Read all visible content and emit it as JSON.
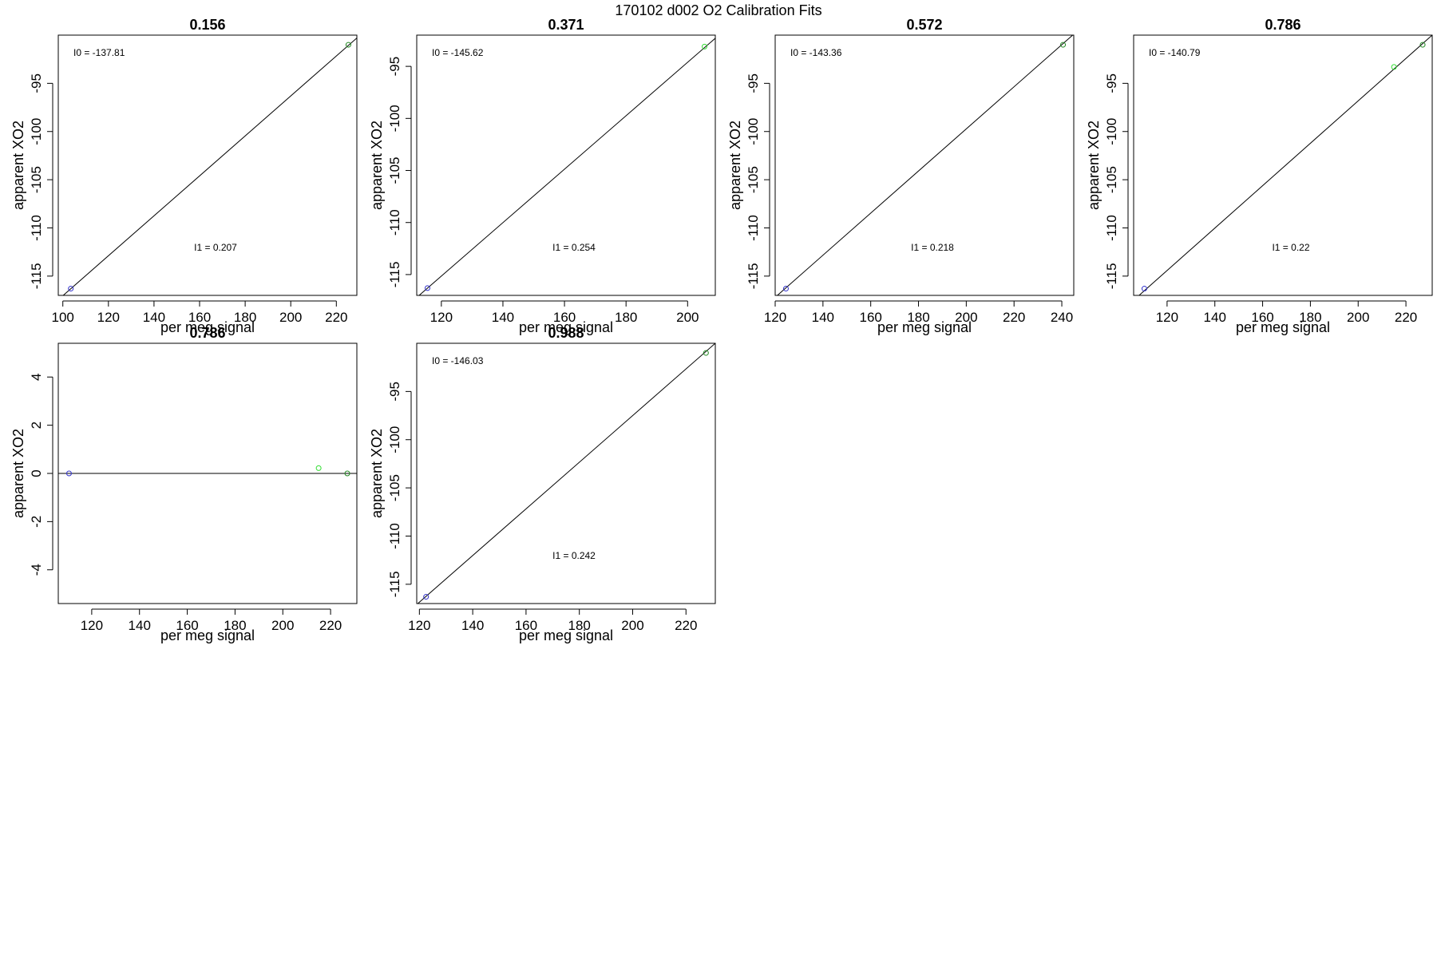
{
  "figure": {
    "title": "170102   d002   O2 Calibration Fits"
  },
  "colors": {
    "frame": "#000000",
    "fit_line": "#000000",
    "point_low": "#3333cc",
    "point_mid": "#33dd33",
    "point_high": "#228822"
  },
  "chart_data": [
    {
      "type": "scatter",
      "title": "0.156",
      "xlabel": "per meg signal",
      "ylabel": "apparent XO2",
      "xlim": [
        98,
        229
      ],
      "ylim": [
        -117,
        -90
      ],
      "xticks": [
        100,
        120,
        140,
        160,
        180,
        200,
        220
      ],
      "yticks": [
        -95,
        -100,
        -105,
        -110,
        -115
      ],
      "fit_line": {
        "intercept_label": "I0 =  -137.81",
        "slope_label": "I1 =  0.207"
      },
      "points": [
        {
          "x": 103.5,
          "y": -116.3,
          "color": "low"
        },
        {
          "x": 225.3,
          "y": -91.0,
          "color": "high"
        }
      ],
      "line": [
        [
          98,
          -117.45
        ],
        [
          229,
          -90.3
        ]
      ]
    },
    {
      "type": "scatter",
      "title": "0.371",
      "xlabel": "per meg signal",
      "ylabel": "apparent XO2",
      "xlim": [
        112,
        209
      ],
      "ylim": [
        -117,
        -92
      ],
      "xticks": [
        120,
        140,
        160,
        180,
        200
      ],
      "yticks": [
        -95,
        -100,
        -105,
        -110,
        -115
      ],
      "fit_line": {
        "intercept_label": "I0 =  -145.62",
        "slope_label": "I1 =  0.254"
      },
      "points": [
        {
          "x": 115.5,
          "y": -116.3,
          "color": "low"
        },
        {
          "x": 205.5,
          "y": -93.1,
          "color": "mid"
        }
      ],
      "line": [
        [
          112,
          -117.2
        ],
        [
          209,
          -92.3
        ]
      ]
    },
    {
      "type": "scatter",
      "title": "0.572",
      "xlabel": "per meg signal",
      "ylabel": "apparent XO2",
      "xlim": [
        120,
        245
      ],
      "ylim": [
        -117,
        -90
      ],
      "xticks": [
        120,
        140,
        160,
        180,
        200,
        220,
        240
      ],
      "yticks": [
        -95,
        -100,
        -105,
        -110,
        -115
      ],
      "fit_line": {
        "intercept_label": "I0 =  -143.36",
        "slope_label": "I1 =  0.218"
      },
      "points": [
        {
          "x": 124.5,
          "y": -116.3,
          "color": "low"
        },
        {
          "x": 240.5,
          "y": -91.0,
          "color": "high"
        }
      ],
      "line": [
        [
          120,
          -117.2
        ],
        [
          245,
          -89.9
        ]
      ]
    },
    {
      "type": "scatter",
      "title": "0.786",
      "xlabel": "per meg signal",
      "ylabel": "apparent XO2",
      "xlim": [
        106,
        231
      ],
      "ylim": [
        -117,
        -90
      ],
      "xticks": [
        120,
        140,
        160,
        180,
        200,
        220
      ],
      "yticks": [
        -95,
        -100,
        -105,
        -110,
        -115
      ],
      "fit_line": {
        "intercept_label": "I0 =  -140.79",
        "slope_label": "I1 =  0.22"
      },
      "points": [
        {
          "x": 110.5,
          "y": -116.3,
          "color": "low"
        },
        {
          "x": 215.0,
          "y": -93.3,
          "color": "mid"
        },
        {
          "x": 227.0,
          "y": -91.0,
          "color": "high"
        }
      ],
      "line": [
        [
          106,
          -117.5
        ],
        [
          231,
          -90.0
        ]
      ]
    },
    {
      "type": "scatter",
      "title": "0.786",
      "xlabel": "per meg signal",
      "ylabel": "apparent XO2",
      "xlim": [
        106,
        231
      ],
      "ylim": [
        -5.4,
        5.4
      ],
      "xticks": [
        120,
        140,
        160,
        180,
        200,
        220
      ],
      "yticks": [
        4,
        2,
        0,
        -2,
        -4
      ],
      "fit_line": {},
      "points": [
        {
          "x": 110.5,
          "y": 0.0,
          "color": "low"
        },
        {
          "x": 215.0,
          "y": 0.22,
          "color": "mid"
        },
        {
          "x": 227.0,
          "y": 0.0,
          "color": "high"
        }
      ],
      "line": [
        [
          106,
          0
        ],
        [
          231,
          0
        ]
      ]
    },
    {
      "type": "scatter",
      "title": "0.988",
      "xlabel": "per meg signal",
      "ylabel": "apparent XO2",
      "xlim": [
        119,
        231
      ],
      "ylim": [
        -117,
        -90
      ],
      "xticks": [
        120,
        140,
        160,
        180,
        200,
        220
      ],
      "yticks": [
        -95,
        -100,
        -105,
        -110,
        -115
      ],
      "fit_line": {
        "intercept_label": "I0 =  -146.03",
        "slope_label": "I1 =  0.242"
      },
      "points": [
        {
          "x": 122.5,
          "y": -116.3,
          "color": "low"
        },
        {
          "x": 227.5,
          "y": -91.0,
          "color": "high"
        }
      ],
      "line": [
        [
          119,
          -117.1
        ],
        [
          231,
          -90.0
        ]
      ]
    }
  ]
}
